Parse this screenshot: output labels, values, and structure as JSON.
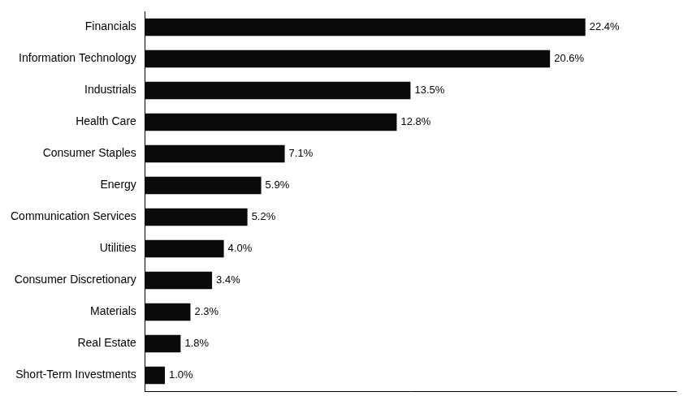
{
  "chart_data": {
    "type": "bar",
    "orientation": "horizontal",
    "categories": [
      "Short-Term Investments",
      "Real Estate",
      "Materials",
      "Consumer Discretionary",
      "Utilities",
      "Communication Services",
      "Energy",
      "Consumer Staples",
      "Health Care",
      "Industrials",
      "Information Technology",
      "Financials"
    ],
    "values": [
      1.0,
      1.8,
      2.3,
      3.4,
      4.0,
      5.2,
      5.9,
      7.1,
      12.8,
      13.5,
      20.6,
      22.4
    ],
    "value_labels": [
      "1.0%",
      "1.8%",
      "2.3%",
      "3.4%",
      "4.0%",
      "5.2%",
      "5.9%",
      "7.1%",
      "12.8%",
      "13.5%",
      "20.6%",
      "22.4%"
    ],
    "data_labels": true,
    "color": "#0a0a0a",
    "xlim": [
      0,
      27
    ],
    "tick_labels": "y",
    "grid": false
  }
}
